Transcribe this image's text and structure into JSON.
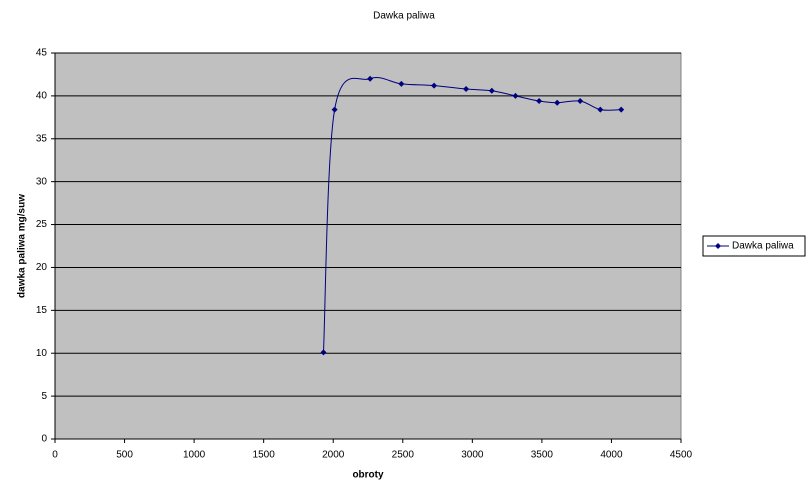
{
  "chart_data": {
    "type": "line",
    "title": "Dawka paliwa",
    "xlabel": "obroty",
    "ylabel": "dawka paliwa mg/suw",
    "x": [
      1930,
      2010,
      2265,
      2490,
      2725,
      2955,
      3140,
      3310,
      3480,
      3610,
      3775,
      3920,
      4070
    ],
    "series": [
      {
        "name": "Dawka paliwa",
        "color": "#000080",
        "values": [
          10.1,
          38.4,
          42,
          41.4,
          41.2,
          40.8,
          40.6,
          40,
          39.4,
          39.2,
          39.4,
          38.4,
          38.4
        ]
      }
    ],
    "xlim": [
      0,
      4500
    ],
    "xticks": [
      0,
      500,
      1000,
      1500,
      2000,
      2500,
      3000,
      3500,
      4000,
      4500
    ],
    "ylim": [
      0,
      45
    ],
    "yticks": [
      0,
      5,
      10,
      15,
      20,
      25,
      30,
      35,
      40,
      45
    ],
    "grid": true,
    "legend": "right",
    "smooth": true,
    "plot_background": "#c0c0c0"
  }
}
